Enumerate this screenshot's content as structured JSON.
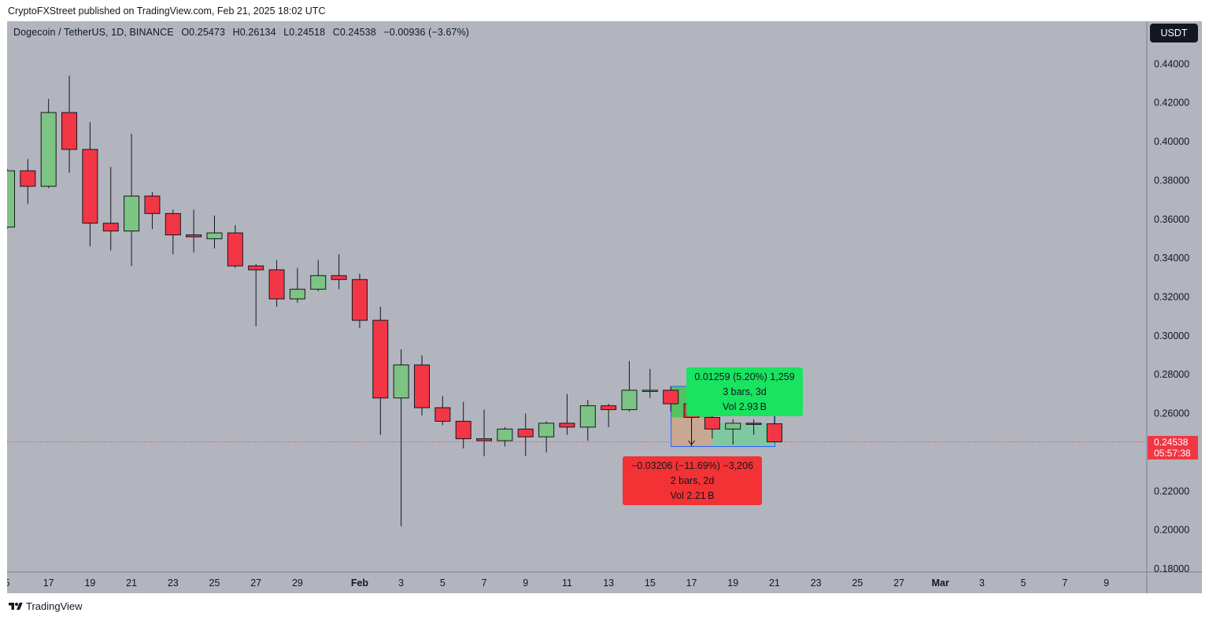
{
  "header": {
    "published_text": "CryptoFXStreet published on TradingView.com, Feb 21, 2025 18:02 UTC"
  },
  "symbol_bar": {
    "symbol": "Dogecoin / TetherUS, 1D, BINANCE",
    "open": "O0.25473",
    "high": "H0.26134",
    "low": "L0.24518",
    "close": "C0.24538",
    "change": "−0.00936 (−3.67%)"
  },
  "currency_button": "USDT",
  "last_price_tag": {
    "price": "0.24538",
    "countdown": "05:57:38",
    "color": "#f23645"
  },
  "measure_up": {
    "line1": "0.01259 (5.20%) 1,259",
    "line2": "3 bars, 3d",
    "line3": "Vol 2.93 B",
    "color": "#19e35f"
  },
  "measure_down": {
    "line1": "−0.03206 (−11.69%) −3,206",
    "line2": "2 bars, 2d",
    "line3": "Vol 2.21 B",
    "color": "#f23234"
  },
  "footer": {
    "brand": "TradingView"
  },
  "colors": {
    "up": "#7dc383",
    "down": "#f23645",
    "background": "#b2b5be"
  },
  "chart_data": {
    "type": "candlestick",
    "ylim": [
      0.18,
      0.45
    ],
    "y_ticks": [
      "0.44000",
      "0.42000",
      "0.40000",
      "0.38000",
      "0.36000",
      "0.34000",
      "0.32000",
      "0.30000",
      "0.28000",
      "0.26000",
      "0.22000",
      "0.20000",
      "0.18000"
    ],
    "x_ticks": [
      {
        "label": "5",
        "date": "2025-01-15"
      },
      {
        "label": "17",
        "date": "2025-01-17"
      },
      {
        "label": "19",
        "date": "2025-01-19"
      },
      {
        "label": "21",
        "date": "2025-01-21"
      },
      {
        "label": "23",
        "date": "2025-01-23"
      },
      {
        "label": "25",
        "date": "2025-01-25"
      },
      {
        "label": "27",
        "date": "2025-01-27"
      },
      {
        "label": "29",
        "date": "2025-01-29"
      },
      {
        "label": "Feb",
        "date": "2025-02-01",
        "bold": true
      },
      {
        "label": "3",
        "date": "2025-02-03"
      },
      {
        "label": "5",
        "date": "2025-02-05"
      },
      {
        "label": "7",
        "date": "2025-02-07"
      },
      {
        "label": "9",
        "date": "2025-02-09"
      },
      {
        "label": "11",
        "date": "2025-02-11"
      },
      {
        "label": "13",
        "date": "2025-02-13"
      },
      {
        "label": "15",
        "date": "2025-02-15"
      },
      {
        "label": "17",
        "date": "2025-02-17"
      },
      {
        "label": "19",
        "date": "2025-02-19"
      },
      {
        "label": "21",
        "date": "2025-02-21"
      },
      {
        "label": "23",
        "date": "2025-02-23"
      },
      {
        "label": "25",
        "date": "2025-02-25"
      },
      {
        "label": "27",
        "date": "2025-02-27"
      },
      {
        "label": "Mar",
        "date": "2025-03-01",
        "bold": true
      },
      {
        "label": "3",
        "date": "2025-03-03"
      },
      {
        "label": "5",
        "date": "2025-03-05"
      },
      {
        "label": "7",
        "date": "2025-03-07"
      },
      {
        "label": "9",
        "date": "2025-03-09"
      }
    ],
    "last_price": 0.24538,
    "candles": [
      {
        "date": "2025-01-15",
        "o": 0.356,
        "h": 0.386,
        "l": 0.355,
        "c": 0.385
      },
      {
        "date": "2025-01-16",
        "o": 0.385,
        "h": 0.391,
        "l": 0.368,
        "c": 0.377
      },
      {
        "date": "2025-01-17",
        "o": 0.377,
        "h": 0.422,
        "l": 0.376,
        "c": 0.415
      },
      {
        "date": "2025-01-18",
        "o": 0.415,
        "h": 0.434,
        "l": 0.384,
        "c": 0.396
      },
      {
        "date": "2025-01-19",
        "o": 0.396,
        "h": 0.41,
        "l": 0.346,
        "c": 0.358
      },
      {
        "date": "2025-01-20",
        "o": 0.358,
        "h": 0.387,
        "l": 0.344,
        "c": 0.354
      },
      {
        "date": "2025-01-21",
        "o": 0.354,
        "h": 0.404,
        "l": 0.336,
        "c": 0.372
      },
      {
        "date": "2025-01-22",
        "o": 0.372,
        "h": 0.374,
        "l": 0.355,
        "c": 0.363
      },
      {
        "date": "2025-01-23",
        "o": 0.363,
        "h": 0.365,
        "l": 0.342,
        "c": 0.352
      },
      {
        "date": "2025-01-24",
        "o": 0.352,
        "h": 0.365,
        "l": 0.343,
        "c": 0.351
      },
      {
        "date": "2025-01-25",
        "o": 0.35,
        "h": 0.362,
        "l": 0.345,
        "c": 0.353
      },
      {
        "date": "2025-01-26",
        "o": 0.353,
        "h": 0.357,
        "l": 0.335,
        "c": 0.336
      },
      {
        "date": "2025-01-27",
        "o": 0.336,
        "h": 0.337,
        "l": 0.305,
        "c": 0.334
      },
      {
        "date": "2025-01-28",
        "o": 0.334,
        "h": 0.339,
        "l": 0.315,
        "c": 0.319
      },
      {
        "date": "2025-01-29",
        "o": 0.319,
        "h": 0.335,
        "l": 0.317,
        "c": 0.324
      },
      {
        "date": "2025-01-30",
        "o": 0.324,
        "h": 0.339,
        "l": 0.323,
        "c": 0.331
      },
      {
        "date": "2025-01-31",
        "o": 0.331,
        "h": 0.342,
        "l": 0.324,
        "c": 0.329
      },
      {
        "date": "2025-02-01",
        "o": 0.329,
        "h": 0.332,
        "l": 0.304,
        "c": 0.308
      },
      {
        "date": "2025-02-02",
        "o": 0.308,
        "h": 0.315,
        "l": 0.249,
        "c": 0.268
      },
      {
        "date": "2025-02-03",
        "o": 0.268,
        "h": 0.293,
        "l": 0.202,
        "c": 0.285
      },
      {
        "date": "2025-02-04",
        "o": 0.285,
        "h": 0.29,
        "l": 0.259,
        "c": 0.263
      },
      {
        "date": "2025-02-05",
        "o": 0.263,
        "h": 0.269,
        "l": 0.254,
        "c": 0.256
      },
      {
        "date": "2025-02-06",
        "o": 0.256,
        "h": 0.266,
        "l": 0.242,
        "c": 0.247
      },
      {
        "date": "2025-02-07",
        "o": 0.247,
        "h": 0.262,
        "l": 0.238,
        "c": 0.246
      },
      {
        "date": "2025-02-08",
        "o": 0.246,
        "h": 0.253,
        "l": 0.243,
        "c": 0.252
      },
      {
        "date": "2025-02-09",
        "o": 0.252,
        "h": 0.26,
        "l": 0.238,
        "c": 0.248
      },
      {
        "date": "2025-02-10",
        "o": 0.248,
        "h": 0.256,
        "l": 0.24,
        "c": 0.255
      },
      {
        "date": "2025-02-11",
        "o": 0.255,
        "h": 0.27,
        "l": 0.249,
        "c": 0.253
      },
      {
        "date": "2025-02-12",
        "o": 0.253,
        "h": 0.267,
        "l": 0.246,
        "c": 0.264
      },
      {
        "date": "2025-02-13",
        "o": 0.264,
        "h": 0.265,
        "l": 0.253,
        "c": 0.262
      },
      {
        "date": "2025-02-14",
        "o": 0.262,
        "h": 0.287,
        "l": 0.261,
        "c": 0.272
      },
      {
        "date": "2025-02-15",
        "o": 0.272,
        "h": 0.283,
        "l": 0.268,
        "c": 0.272
      },
      {
        "date": "2025-02-16",
        "o": 0.272,
        "h": 0.274,
        "l": 0.261,
        "c": 0.265
      },
      {
        "date": "2025-02-17",
        "o": 0.265,
        "h": 0.274,
        "l": 0.243,
        "c": 0.258
      },
      {
        "date": "2025-02-18",
        "o": 0.258,
        "h": 0.26,
        "l": 0.247,
        "c": 0.252
      },
      {
        "date": "2025-02-19",
        "o": 0.252,
        "h": 0.257,
        "l": 0.244,
        "c": 0.255
      },
      {
        "date": "2025-02-20",
        "o": 0.255,
        "h": 0.257,
        "l": 0.249,
        "c": 0.2547
      },
      {
        "date": "2025-02-21",
        "o": 0.2547,
        "h": 0.2613,
        "l": 0.2452,
        "c": 0.2454
      }
    ]
  }
}
